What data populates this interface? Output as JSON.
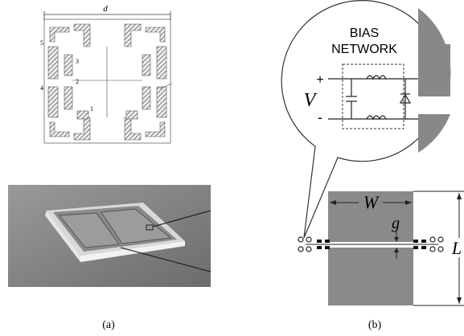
{
  "panel_a": {
    "dimension": "d",
    "port_labels": [
      "5",
      "3",
      "4",
      "2",
      "1"
    ],
    "caption": "(a)"
  },
  "panel_b": {
    "bias_network": [
      "BIAS",
      "NETWORK"
    ],
    "plus": "+",
    "minus": "-",
    "voltage": "V",
    "width": "W",
    "gap": "g",
    "length": "L",
    "caption": "(b)"
  }
}
